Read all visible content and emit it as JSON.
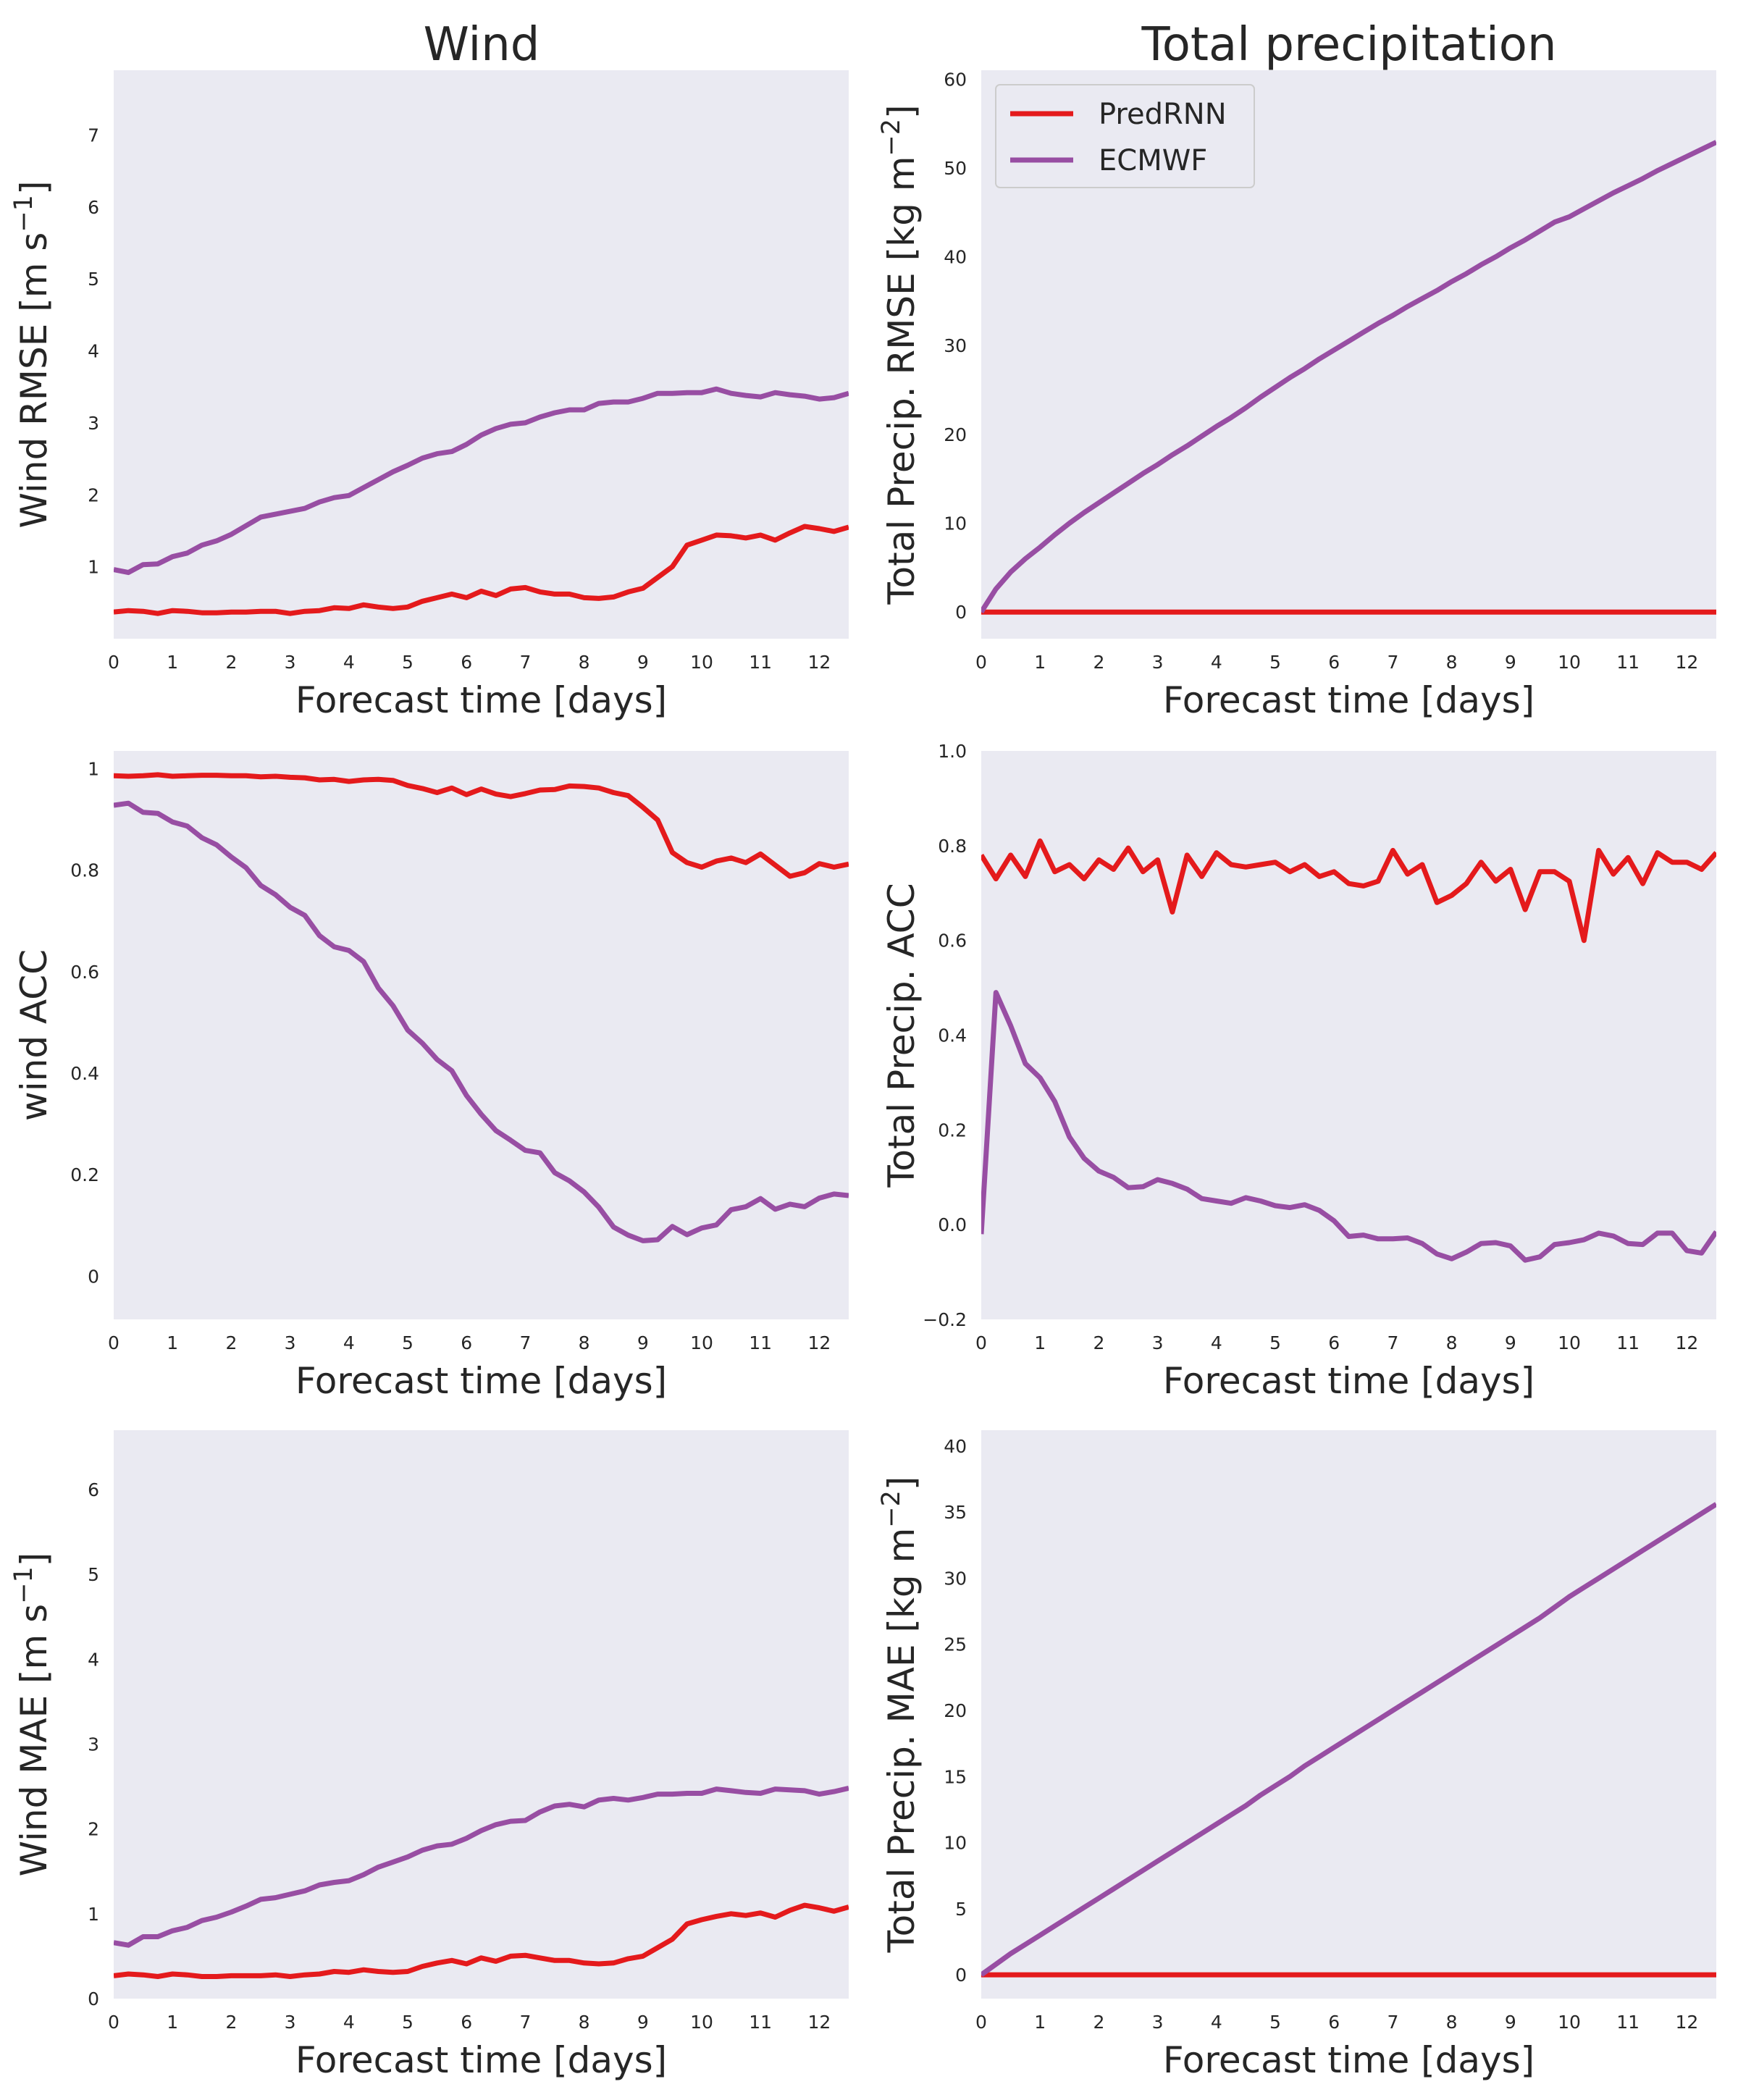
{
  "column_titles": [
    "Wind",
    "Total precipitation"
  ],
  "colors": {
    "PredRNN": "#e41a1c",
    "ECMWF": "#984ea3",
    "panel_background": "#eaeaf2"
  },
  "legend": {
    "location": "upper-left",
    "panel": 1,
    "entries": [
      "PredRNN",
      "ECMWF"
    ]
  },
  "chart_data": [
    {
      "type": "line",
      "column": "Wind",
      "xlabel": "Forecast time [days]",
      "ylabel": "Wind RMSE [m s$^{-1}$]",
      "xlim": [
        0,
        12.5
      ],
      "ylim": [
        0,
        7.9
      ],
      "xticks": [
        0,
        1,
        2,
        3,
        4,
        5,
        6,
        7,
        8,
        9,
        10,
        11,
        12
      ],
      "yticks": [
        1,
        2,
        3,
        4,
        5,
        6,
        7
      ],
      "grid": false,
      "x": [
        0,
        0.25,
        0.5,
        0.75,
        1,
        1.25,
        1.5,
        1.75,
        2,
        2.25,
        2.5,
        2.75,
        3,
        3.25,
        3.5,
        3.75,
        4,
        4.25,
        4.5,
        4.75,
        5,
        5.25,
        5.5,
        5.75,
        6,
        6.25,
        6.5,
        6.75,
        7,
        7.25,
        7.5,
        7.75,
        8,
        8.25,
        8.5,
        8.75,
        9,
        9.25,
        9.5,
        9.75,
        10,
        10.25,
        10.5,
        10.75,
        11,
        11.25,
        11.5,
        11.75,
        12,
        12.25,
        12.5
      ],
      "series": [
        {
          "name": "PredRNN",
          "values": [
            0.37,
            0.39,
            0.38,
            0.35,
            0.39,
            0.38,
            0.36,
            0.36,
            0.37,
            0.37,
            0.38,
            0.38,
            0.35,
            0.38,
            0.39,
            0.43,
            0.42,
            0.47,
            0.44,
            0.42,
            0.44,
            0.52,
            0.57,
            0.62,
            0.57,
            0.66,
            0.6,
            0.69,
            0.71,
            0.65,
            0.62,
            0.62,
            0.57,
            0.56,
            0.58,
            0.65,
            0.7,
            0.85,
            1.0,
            1.3,
            1.37,
            1.44,
            1.43,
            1.4,
            1.44,
            1.37,
            1.47,
            1.56,
            1.53,
            1.49,
            1.55
          ]
        },
        {
          "name": "ECMWF",
          "values": [
            0.96,
            0.92,
            1.03,
            1.04,
            1.14,
            1.19,
            1.3,
            1.36,
            1.45,
            1.57,
            1.69,
            1.73,
            1.77,
            1.81,
            1.9,
            1.96,
            1.99,
            2.1,
            2.21,
            2.32,
            2.41,
            2.51,
            2.57,
            2.6,
            2.7,
            2.83,
            2.92,
            2.98,
            3.0,
            3.08,
            3.14,
            3.18,
            3.18,
            3.27,
            3.29,
            3.29,
            3.34,
            3.41,
            3.41,
            3.42,
            3.42,
            3.47,
            3.41,
            3.38,
            3.36,
            3.42,
            3.39,
            3.37,
            3.33,
            3.35,
            3.41
          ]
        }
      ]
    },
    {
      "type": "line",
      "column": "Total precipitation",
      "xlabel": "Forecast time [days]",
      "ylabel": "Total Precip. RMSE [kg m$^{-2}$]",
      "xlim": [
        0,
        12.5
      ],
      "ylim": [
        -3,
        61
      ],
      "xticks": [
        0,
        1,
        2,
        3,
        4,
        5,
        6,
        7,
        8,
        9,
        10,
        11,
        12
      ],
      "yticks": [
        0,
        10,
        20,
        30,
        40,
        50,
        60
      ],
      "grid": false,
      "x": [
        0,
        0.25,
        0.5,
        0.75,
        1,
        1.25,
        1.5,
        1.75,
        2,
        2.25,
        2.5,
        2.75,
        3,
        3.25,
        3.5,
        3.75,
        4,
        4.25,
        4.5,
        4.75,
        5,
        5.25,
        5.5,
        5.75,
        6,
        6.25,
        6.5,
        6.75,
        7,
        7.25,
        7.5,
        7.75,
        8,
        8.25,
        8.5,
        8.75,
        9,
        9.25,
        9.5,
        9.75,
        10,
        10.25,
        10.5,
        10.75,
        11,
        11.25,
        11.5,
        11.75,
        12,
        12.25,
        12.5
      ],
      "series": [
        {
          "name": "PredRNN",
          "values": [
            0,
            0,
            0,
            0,
            0,
            0,
            0,
            0,
            0,
            0,
            0,
            0,
            0,
            0,
            0,
            0,
            0,
            0,
            0,
            0,
            0,
            0,
            0,
            0,
            0,
            0,
            0,
            0,
            0,
            0,
            0,
            0,
            0,
            0,
            0,
            0,
            0,
            0,
            0,
            0,
            0,
            0,
            0,
            0,
            0,
            0,
            0,
            0,
            0,
            0,
            0
          ]
        },
        {
          "name": "ECMWF",
          "values": [
            0,
            2.6,
            4.5,
            6.0,
            7.3,
            8.7,
            10.0,
            11.2,
            12.3,
            13.4,
            14.5,
            15.6,
            16.6,
            17.7,
            18.7,
            19.8,
            20.9,
            21.9,
            23.0,
            24.2,
            25.3,
            26.4,
            27.4,
            28.5,
            29.5,
            30.5,
            31.5,
            32.5,
            33.4,
            34.4,
            35.3,
            36.2,
            37.2,
            38.1,
            39.1,
            40.0,
            41.0,
            41.9,
            42.9,
            43.9,
            44.5,
            45.4,
            46.3,
            47.2,
            48.0,
            48.8,
            49.7,
            50.5,
            51.3,
            52.1,
            52.9
          ]
        }
      ]
    },
    {
      "type": "line",
      "column": "Wind",
      "xlabel": "Forecast time [days]",
      "ylabel": "wind ACC",
      "xlim": [
        0,
        12.5
      ],
      "ylim": [
        -0.085,
        1.035
      ],
      "xticks": [
        0,
        1,
        2,
        3,
        4,
        5,
        6,
        7,
        8,
        9,
        10,
        11,
        12
      ],
      "yticks": [
        0.0,
        0.2,
        0.4,
        0.6,
        0.8,
        1.0
      ],
      "grid": false,
      "x": [
        0,
        0.25,
        0.5,
        0.75,
        1,
        1.25,
        1.5,
        1.75,
        2,
        2.25,
        2.5,
        2.75,
        3,
        3.25,
        3.5,
        3.75,
        4,
        4.25,
        4.5,
        4.75,
        5,
        5.25,
        5.5,
        5.75,
        6,
        6.25,
        6.5,
        6.75,
        7,
        7.25,
        7.5,
        7.75,
        8,
        8.25,
        8.5,
        8.75,
        9,
        9.25,
        9.5,
        9.75,
        10,
        10.25,
        10.5,
        10.75,
        11,
        11.25,
        11.5,
        11.75,
        12,
        12.25,
        12.5
      ],
      "series": [
        {
          "name": "PredRNN",
          "values": [
            0.986,
            0.985,
            0.986,
            0.988,
            0.985,
            0.986,
            0.987,
            0.987,
            0.986,
            0.986,
            0.984,
            0.985,
            0.983,
            0.982,
            0.978,
            0.979,
            0.975,
            0.978,
            0.979,
            0.977,
            0.967,
            0.961,
            0.953,
            0.962,
            0.949,
            0.96,
            0.95,
            0.945,
            0.951,
            0.958,
            0.959,
            0.966,
            0.965,
            0.962,
            0.953,
            0.947,
            0.924,
            0.899,
            0.835,
            0.815,
            0.806,
            0.818,
            0.824,
            0.815,
            0.832,
            0.81,
            0.788,
            0.795,
            0.813,
            0.806,
            0.812
          ]
        },
        {
          "name": "ECMWF",
          "values": [
            0.928,
            0.932,
            0.914,
            0.912,
            0.895,
            0.887,
            0.864,
            0.85,
            0.826,
            0.805,
            0.77,
            0.752,
            0.727,
            0.711,
            0.671,
            0.649,
            0.642,
            0.62,
            0.568,
            0.533,
            0.485,
            0.459,
            0.427,
            0.405,
            0.356,
            0.319,
            0.287,
            0.268,
            0.248,
            0.243,
            0.204,
            0.188,
            0.166,
            0.136,
            0.097,
            0.081,
            0.07,
            0.072,
            0.098,
            0.082,
            0.095,
            0.101,
            0.131,
            0.137,
            0.153,
            0.132,
            0.142,
            0.137,
            0.154,
            0.162,
            0.159
          ]
        }
      ]
    },
    {
      "type": "line",
      "column": "Total precipitation",
      "xlabel": "Forecast time [days]",
      "ylabel": "Total Precip. ACC",
      "xlim": [
        0,
        12.5
      ],
      "ylim": [
        -0.2,
        1.0
      ],
      "xticks": [
        0,
        1,
        2,
        3,
        4,
        5,
        6,
        7,
        8,
        9,
        10,
        11,
        12
      ],
      "yticks": [
        -0.2,
        0.0,
        0.2,
        0.4,
        0.6,
        0.8,
        1.0
      ],
      "ytick_labels": [
        "−0.2",
        "0.0",
        "0.2",
        "0.4",
        "0.6",
        "0.8",
        "1.0"
      ],
      "grid": false,
      "x": [
        0,
        0.25,
        0.5,
        0.75,
        1,
        1.25,
        1.5,
        1.75,
        2,
        2.25,
        2.5,
        2.75,
        3,
        3.25,
        3.5,
        3.75,
        4,
        4.25,
        4.5,
        4.75,
        5,
        5.25,
        5.5,
        5.75,
        6,
        6.25,
        6.5,
        6.75,
        7,
        7.25,
        7.5,
        7.75,
        8,
        8.25,
        8.5,
        8.75,
        9,
        9.25,
        9.5,
        9.75,
        10,
        10.25,
        10.5,
        10.75,
        11,
        11.25,
        11.5,
        11.75,
        12,
        12.25,
        12.5
      ],
      "series": [
        {
          "name": "PredRNN",
          "values": [
            0.78,
            0.73,
            0.78,
            0.735,
            0.81,
            0.745,
            0.76,
            0.73,
            0.77,
            0.75,
            0.795,
            0.745,
            0.77,
            0.66,
            0.78,
            0.735,
            0.785,
            0.76,
            0.755,
            0.76,
            0.765,
            0.745,
            0.76,
            0.735,
            0.745,
            0.72,
            0.715,
            0.725,
            0.79,
            0.74,
            0.76,
            0.68,
            0.695,
            0.72,
            0.765,
            0.725,
            0.75,
            0.665,
            0.745,
            0.745,
            0.725,
            0.6,
            0.79,
            0.74,
            0.775,
            0.72,
            0.785,
            0.765,
            0.765,
            0.75,
            0.785
          ]
        },
        {
          "name": "ECMWF",
          "values": [
            -0.02,
            0.49,
            0.42,
            0.34,
            0.31,
            0.26,
            0.185,
            0.14,
            0.113,
            0.1,
            0.078,
            0.08,
            0.095,
            0.087,
            0.075,
            0.055,
            0.05,
            0.045,
            0.057,
            0.05,
            0.04,
            0.036,
            0.042,
            0.03,
            0.008,
            -0.025,
            -0.022,
            -0.03,
            -0.03,
            -0.028,
            -0.04,
            -0.062,
            -0.072,
            -0.058,
            -0.04,
            -0.038,
            -0.045,
            -0.075,
            -0.068,
            -0.042,
            -0.038,
            -0.032,
            -0.018,
            -0.024,
            -0.04,
            -0.042,
            -0.018,
            -0.018,
            -0.055,
            -0.06,
            -0.015
          ]
        }
      ]
    },
    {
      "type": "line",
      "column": "Wind",
      "xlabel": "Forecast time [days]",
      "ylabel": "Wind MAE [m s$^{-1}$]",
      "xlim": [
        0,
        12.5
      ],
      "ylim": [
        0,
        6.7
      ],
      "xticks": [
        0,
        1,
        2,
        3,
        4,
        5,
        6,
        7,
        8,
        9,
        10,
        11,
        12
      ],
      "yticks": [
        0,
        1,
        2,
        3,
        4,
        5,
        6
      ],
      "grid": false,
      "x": [
        0,
        0.25,
        0.5,
        0.75,
        1,
        1.25,
        1.5,
        1.75,
        2,
        2.25,
        2.5,
        2.75,
        3,
        3.25,
        3.5,
        3.75,
        4,
        4.25,
        4.5,
        4.75,
        5,
        5.25,
        5.5,
        5.75,
        6,
        6.25,
        6.5,
        6.75,
        7,
        7.25,
        7.5,
        7.75,
        8,
        8.25,
        8.5,
        8.75,
        9,
        9.25,
        9.5,
        9.75,
        10,
        10.25,
        10.5,
        10.75,
        11,
        11.25,
        11.5,
        11.75,
        12,
        12.25,
        12.5
      ],
      "series": [
        {
          "name": "PredRNN",
          "values": [
            0.27,
            0.29,
            0.28,
            0.26,
            0.29,
            0.28,
            0.26,
            0.26,
            0.27,
            0.27,
            0.27,
            0.28,
            0.26,
            0.28,
            0.29,
            0.32,
            0.31,
            0.34,
            0.32,
            0.31,
            0.32,
            0.38,
            0.42,
            0.45,
            0.41,
            0.48,
            0.44,
            0.5,
            0.51,
            0.48,
            0.45,
            0.45,
            0.42,
            0.41,
            0.42,
            0.47,
            0.5,
            0.6,
            0.7,
            0.88,
            0.93,
            0.97,
            1.0,
            0.98,
            1.01,
            0.96,
            1.04,
            1.1,
            1.07,
            1.03,
            1.08
          ]
        },
        {
          "name": "ECMWF",
          "values": [
            0.66,
            0.63,
            0.73,
            0.73,
            0.8,
            0.84,
            0.92,
            0.96,
            1.02,
            1.09,
            1.17,
            1.19,
            1.23,
            1.27,
            1.34,
            1.37,
            1.39,
            1.46,
            1.55,
            1.61,
            1.67,
            1.75,
            1.8,
            1.82,
            1.89,
            1.98,
            2.05,
            2.09,
            2.1,
            2.2,
            2.27,
            2.29,
            2.26,
            2.34,
            2.36,
            2.34,
            2.37,
            2.41,
            2.41,
            2.42,
            2.42,
            2.47,
            2.45,
            2.43,
            2.42,
            2.47,
            2.46,
            2.45,
            2.41,
            2.44,
            2.48
          ]
        }
      ]
    },
    {
      "type": "line",
      "column": "Total precipitation",
      "xlabel": "Forecast time [days]",
      "ylabel": "Total Precip. MAE [kg m$^{-2}$]",
      "xlim": [
        0,
        12.5
      ],
      "ylim": [
        -1.8,
        41.2
      ],
      "xticks": [
        0,
        1,
        2,
        3,
        4,
        5,
        6,
        7,
        8,
        9,
        10,
        11,
        12
      ],
      "yticks": [
        0,
        5,
        10,
        15,
        20,
        25,
        30,
        35,
        40
      ],
      "grid": false,
      "x": [
        0,
        0.25,
        0.5,
        0.75,
        1,
        1.25,
        1.5,
        1.75,
        2,
        2.25,
        2.5,
        2.75,
        3,
        3.25,
        3.5,
        3.75,
        4,
        4.25,
        4.5,
        4.75,
        5,
        5.25,
        5.5,
        5.75,
        6,
        6.25,
        6.5,
        6.75,
        7,
        7.25,
        7.5,
        7.75,
        8,
        8.25,
        8.5,
        8.75,
        9,
        9.25,
        9.5,
        9.75,
        10,
        10.25,
        10.5,
        10.75,
        11,
        11.25,
        11.5,
        11.75,
        12,
        12.25,
        12.5
      ],
      "series": [
        {
          "name": "PredRNN",
          "values": [
            0,
            0,
            0,
            0,
            0,
            0,
            0,
            0,
            0,
            0,
            0,
            0,
            0,
            0,
            0,
            0,
            0,
            0,
            0,
            0,
            0,
            0,
            0,
            0,
            0,
            0,
            0,
            0,
            0,
            0,
            0,
            0,
            0,
            0,
            0,
            0,
            0,
            0,
            0,
            0,
            0,
            0,
            0,
            0,
            0,
            0,
            0,
            0,
            0,
            0,
            0
          ]
        },
        {
          "name": "ECMWF",
          "values": [
            0,
            0.8,
            1.6,
            2.3,
            3.0,
            3.7,
            4.4,
            5.1,
            5.8,
            6.5,
            7.2,
            7.9,
            8.6,
            9.3,
            10.0,
            10.7,
            11.4,
            12.1,
            12.8,
            13.6,
            14.3,
            15.0,
            15.8,
            16.5,
            17.2,
            17.9,
            18.6,
            19.3,
            20.0,
            20.7,
            21.4,
            22.1,
            22.8,
            23.5,
            24.2,
            24.9,
            25.6,
            26.3,
            27.0,
            27.8,
            28.6,
            29.3,
            30.0,
            30.7,
            31.4,
            32.1,
            32.8,
            33.5,
            34.2,
            34.9,
            35.6
          ]
        }
      ]
    }
  ]
}
